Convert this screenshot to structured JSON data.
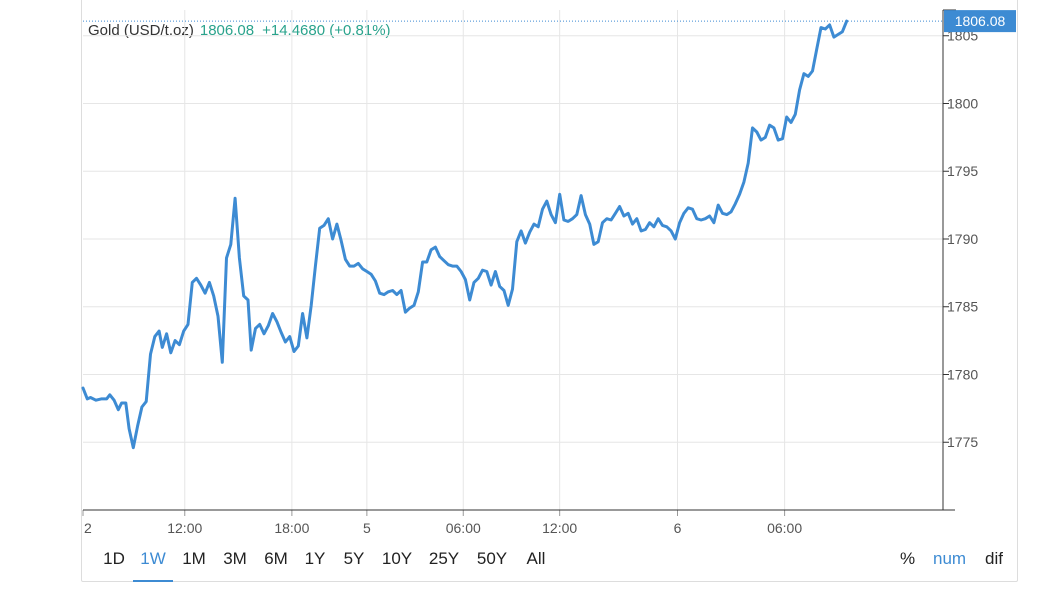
{
  "header": {
    "instrument": "Gold (USD/t.oz)",
    "price": "1806.08",
    "change": "+14.4680 (+0.81%)"
  },
  "last_price_label": "1806.08",
  "colors": {
    "line": "#3d8bd3",
    "up": "#2aa38c",
    "grid": "#e6e6e6",
    "axis": "#333333",
    "price_tag_bg": "#3d8bd3",
    "price_tag_text": "#ffffff"
  },
  "range_buttons": [
    {
      "label": "1D",
      "active": false
    },
    {
      "label": "1W",
      "active": true
    },
    {
      "label": "1M",
      "active": false
    },
    {
      "label": "3M",
      "active": false
    },
    {
      "label": "6M",
      "active": false
    },
    {
      "label": "1Y",
      "active": false
    },
    {
      "label": "5Y",
      "active": false
    },
    {
      "label": "10Y",
      "active": false
    },
    {
      "label": "25Y",
      "active": false
    },
    {
      "label": "50Y",
      "active": false
    },
    {
      "label": "All",
      "active": false
    }
  ],
  "mode_buttons": [
    {
      "label": "%",
      "active": false
    },
    {
      "label": "num",
      "active": true
    },
    {
      "label": "dif",
      "active": false
    }
  ],
  "chart_data": {
    "type": "line",
    "title": "",
    "xlabel": "",
    "ylabel": "",
    "x_unit": "hours",
    "xlim": [
      -14.5,
      63.5
    ],
    "ylim": [
      1770,
      1806.9
    ],
    "x_ticks": [
      {
        "x": -14.5,
        "label": "2"
      },
      {
        "x": -5,
        "label": "12:00"
      },
      {
        "x": 5,
        "label": "18:00"
      },
      {
        "x": 12,
        "label": "5"
      },
      {
        "x": 21,
        "label": "06:00"
      },
      {
        "x": 30,
        "label": "12:00"
      },
      {
        "x": 41,
        "label": "6"
      },
      {
        "x": 51,
        "label": "06:00"
      }
    ],
    "y_ticks": [
      1775,
      1780,
      1785,
      1790,
      1795,
      1800,
      1805
    ],
    "grid": true,
    "last_value": 1806.08,
    "series": [
      {
        "name": "",
        "points": [
          [
            -14.5,
            1779
          ],
          [
            -14.1,
            1778.2
          ],
          [
            -13.8,
            1778.3
          ],
          [
            -13.3,
            1778.1
          ],
          [
            -12.8,
            1778.2
          ],
          [
            -12.3,
            1778.2
          ],
          [
            -12.0,
            1778.5
          ],
          [
            -11.6,
            1778.1
          ],
          [
            -11.2,
            1777.4
          ],
          [
            -10.9,
            1777.9
          ],
          [
            -10.5,
            1777.9
          ],
          [
            -10.2,
            1776.0
          ],
          [
            -9.8,
            1774.6
          ],
          [
            -9.4,
            1776.2
          ],
          [
            -9.0,
            1777.6
          ],
          [
            -8.6,
            1778.0
          ],
          [
            -8.2,
            1781.5
          ],
          [
            -7.8,
            1782.8
          ],
          [
            -7.4,
            1783.2
          ],
          [
            -7.1,
            1782.0
          ],
          [
            -6.7,
            1783.0
          ],
          [
            -6.3,
            1781.6
          ],
          [
            -5.9,
            1782.5
          ],
          [
            -5.5,
            1782.2
          ],
          [
            -5.1,
            1783.2
          ],
          [
            -4.7,
            1783.7
          ],
          [
            -4.3,
            1786.8
          ],
          [
            -3.9,
            1787.1
          ],
          [
            -3.5,
            1786.6
          ],
          [
            -3.1,
            1786.0
          ],
          [
            -2.7,
            1786.8
          ],
          [
            -2.3,
            1785.8
          ],
          [
            -1.9,
            1784.3
          ],
          [
            -1.5,
            1780.9
          ],
          [
            -1.1,
            1788.6
          ],
          [
            -0.7,
            1789.6
          ],
          [
            -0.3,
            1793.0
          ],
          [
            0.1,
            1788.6
          ],
          [
            0.5,
            1785.8
          ],
          [
            0.9,
            1785.5
          ],
          [
            1.2,
            1781.8
          ],
          [
            1.6,
            1783.4
          ],
          [
            2.0,
            1783.7
          ],
          [
            2.4,
            1783.0
          ],
          [
            2.8,
            1783.6
          ],
          [
            3.2,
            1784.5
          ],
          [
            3.6,
            1783.9
          ],
          [
            4.0,
            1783.1
          ],
          [
            4.4,
            1782.4
          ],
          [
            4.8,
            1782.8
          ],
          [
            5.2,
            1781.7
          ],
          [
            5.6,
            1782.1
          ],
          [
            6.0,
            1784.5
          ],
          [
            6.4,
            1782.7
          ],
          [
            6.8,
            1785.1
          ],
          [
            7.2,
            1788.0
          ],
          [
            7.6,
            1790.8
          ],
          [
            8.0,
            1791.0
          ],
          [
            8.4,
            1791.5
          ],
          [
            8.8,
            1790.0
          ],
          [
            9.2,
            1791.1
          ],
          [
            9.6,
            1789.9
          ],
          [
            10.0,
            1788.5
          ],
          [
            10.4,
            1788.0
          ],
          [
            10.8,
            1788.0
          ],
          [
            11.2,
            1788.2
          ],
          [
            11.6,
            1787.8
          ],
          [
            12.0,
            1787.6
          ],
          [
            12.4,
            1787.4
          ],
          [
            12.8,
            1786.9
          ],
          [
            13.2,
            1786.0
          ],
          [
            13.6,
            1785.9
          ],
          [
            14.0,
            1786.1
          ],
          [
            14.4,
            1786.2
          ],
          [
            14.8,
            1785.9
          ],
          [
            15.2,
            1786.2
          ],
          [
            15.6,
            1784.6
          ],
          [
            16.0,
            1784.9
          ],
          [
            16.4,
            1785.1
          ],
          [
            16.8,
            1786.1
          ],
          [
            17.2,
            1788.3
          ],
          [
            17.6,
            1788.3
          ],
          [
            18.0,
            1789.2
          ],
          [
            18.4,
            1789.4
          ],
          [
            18.8,
            1788.7
          ],
          [
            19.2,
            1788.4
          ],
          [
            19.6,
            1788.1
          ],
          [
            20.0,
            1788.0
          ],
          [
            20.4,
            1788.0
          ],
          [
            20.8,
            1787.6
          ],
          [
            21.2,
            1787.0
          ],
          [
            21.6,
            1785.5
          ],
          [
            22.0,
            1786.8
          ],
          [
            22.4,
            1787.1
          ],
          [
            22.8,
            1787.7
          ],
          [
            23.2,
            1787.6
          ],
          [
            23.6,
            1786.6
          ],
          [
            24.0,
            1787.6
          ],
          [
            24.4,
            1786.5
          ],
          [
            24.8,
            1786.2
          ],
          [
            25.2,
            1785.1
          ],
          [
            25.6,
            1786.3
          ],
          [
            26.0,
            1789.8
          ],
          [
            26.4,
            1790.6
          ],
          [
            26.8,
            1789.7
          ],
          [
            27.2,
            1790.5
          ],
          [
            27.6,
            1791.1
          ],
          [
            28.0,
            1790.9
          ],
          [
            28.4,
            1792.2
          ],
          [
            28.8,
            1792.8
          ],
          [
            29.2,
            1791.8
          ],
          [
            29.6,
            1791.2
          ],
          [
            30.0,
            1793.3
          ],
          [
            30.4,
            1791.4
          ],
          [
            30.8,
            1791.3
          ],
          [
            31.2,
            1791.5
          ],
          [
            31.6,
            1791.8
          ],
          [
            32.0,
            1793.2
          ],
          [
            32.4,
            1791.8
          ],
          [
            32.8,
            1791.1
          ],
          [
            33.2,
            1789.6
          ],
          [
            33.6,
            1789.8
          ],
          [
            34.0,
            1791.2
          ],
          [
            34.4,
            1791.5
          ],
          [
            34.8,
            1791.4
          ],
          [
            35.2,
            1791.9
          ],
          [
            35.6,
            1792.4
          ],
          [
            36.0,
            1791.7
          ],
          [
            36.4,
            1791.9
          ],
          [
            36.8,
            1791.1
          ],
          [
            37.2,
            1791.5
          ],
          [
            37.6,
            1790.6
          ],
          [
            38.0,
            1790.7
          ],
          [
            38.4,
            1791.2
          ],
          [
            38.8,
            1790.9
          ],
          [
            39.2,
            1791.5
          ],
          [
            39.6,
            1791.0
          ],
          [
            40.0,
            1790.9
          ],
          [
            40.4,
            1790.6
          ],
          [
            40.8,
            1790.0
          ],
          [
            41.2,
            1791.2
          ],
          [
            41.6,
            1791.9
          ],
          [
            42.0,
            1792.3
          ],
          [
            42.4,
            1792.2
          ],
          [
            42.8,
            1791.5
          ],
          [
            43.2,
            1791.4
          ],
          [
            43.6,
            1791.5
          ],
          [
            44.0,
            1791.7
          ],
          [
            44.4,
            1791.2
          ],
          [
            44.8,
            1792.5
          ],
          [
            45.2,
            1791.9
          ],
          [
            45.6,
            1791.8
          ],
          [
            46.0,
            1792.0
          ],
          [
            46.4,
            1792.6
          ],
          [
            46.8,
            1793.3
          ],
          [
            47.2,
            1794.2
          ],
          [
            47.6,
            1795.6
          ],
          [
            48.0,
            1798.2
          ],
          [
            48.4,
            1797.9
          ],
          [
            48.8,
            1797.3
          ],
          [
            49.2,
            1797.5
          ],
          [
            49.6,
            1798.4
          ],
          [
            50.0,
            1798.2
          ],
          [
            50.4,
            1797.3
          ],
          [
            50.8,
            1797.4
          ],
          [
            51.2,
            1799.0
          ],
          [
            51.6,
            1798.6
          ],
          [
            52.0,
            1799.2
          ],
          [
            52.4,
            1801.0
          ],
          [
            52.8,
            1802.2
          ],
          [
            53.2,
            1802.0
          ],
          [
            53.6,
            1802.4
          ],
          [
            54.0,
            1804.0
          ],
          [
            54.4,
            1805.6
          ],
          [
            54.8,
            1805.5
          ],
          [
            55.2,
            1805.8
          ],
          [
            55.6,
            1804.9
          ],
          [
            56.0,
            1805.1
          ],
          [
            56.4,
            1805.3
          ],
          [
            56.8,
            1806.08
          ]
        ]
      }
    ]
  }
}
